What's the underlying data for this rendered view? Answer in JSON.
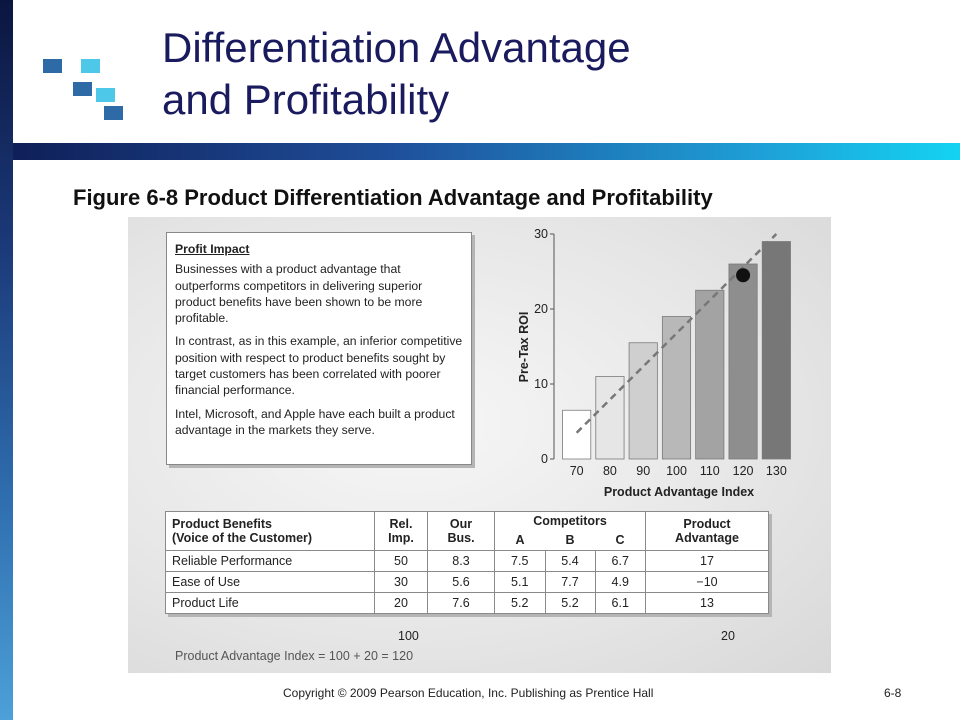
{
  "slide": {
    "title_line1": "Differentiation Advantage",
    "title_line2": "and Profitability",
    "figure_caption": "Figure 6-8 Product Differentiation Advantage and Profitability",
    "footer": "Copyright © 2009 Pearson Education, Inc.  Publishing as Prentice Hall",
    "page_number": "6-8",
    "colors": {
      "title": "#1a1a5e",
      "accent_dark": "#0f1f58",
      "accent_light": "#14d3f2"
    }
  },
  "profit_impact": {
    "heading": "Profit Impact",
    "paragraphs": [
      "Businesses with a product advantage that outperforms competitors in delivering superior product benefits have been shown to be more profitable.",
      "In contrast, as in this example, an inferior competitive position with respect to product benefits sought by target customers has been correlated with poorer financial performance.",
      "Intel, Microsoft, and Apple have each built a product advantage in the markets they serve."
    ]
  },
  "chart_data": {
    "type": "bar",
    "categories": [
      "70",
      "80",
      "90",
      "100",
      "110",
      "120",
      "130"
    ],
    "values": [
      6.5,
      11,
      15.5,
      19,
      22.5,
      26,
      29
    ],
    "xlabel": "Product Advantage Index",
    "ylabel": "Pre-Tax ROI",
    "ylim": [
      0,
      30
    ],
    "yticks": [
      "0",
      "10",
      "20",
      "30"
    ],
    "trend_line": {
      "style": "dashed",
      "from": [
        70,
        3.5
      ],
      "to": [
        130,
        30
      ]
    },
    "highlight_point": {
      "x": 120,
      "y": 24.5
    },
    "bar_colors": [
      "#ffffff",
      "#e6e6e6",
      "#cfcfcf",
      "#b8b8b8",
      "#a3a3a3",
      "#8e8e8e",
      "#777777"
    ]
  },
  "benefits_table": {
    "headers": {
      "benefits": [
        "Product Benefits",
        "(Voice of the Customer)"
      ],
      "rel": [
        "Rel.",
        "Imp."
      ],
      "our": [
        "Our",
        "Bus."
      ],
      "competitors": "Competitors",
      "comp_cols": [
        "A",
        "B",
        "C"
      ],
      "advantage": [
        "Product",
        "Advantage"
      ]
    },
    "rows": [
      {
        "benefit": "Reliable Performance",
        "rel": "50",
        "our": "8.3",
        "a": "7.5",
        "b": "5.4",
        "c": "6.7",
        "adv": "17"
      },
      {
        "benefit": "Ease of Use",
        "rel": "30",
        "our": "5.6",
        "a": "5.1",
        "b": "7.7",
        "c": "4.9",
        "adv": "−10"
      },
      {
        "benefit": "Product Life",
        "rel": "20",
        "our": "7.6",
        "a": "5.2",
        "b": "5.2",
        "c": "6.1",
        "adv": "13"
      }
    ],
    "totals": {
      "rel": "100",
      "adv": "20"
    },
    "formula": "Product Advantage Index = 100 + 20 = 120"
  }
}
